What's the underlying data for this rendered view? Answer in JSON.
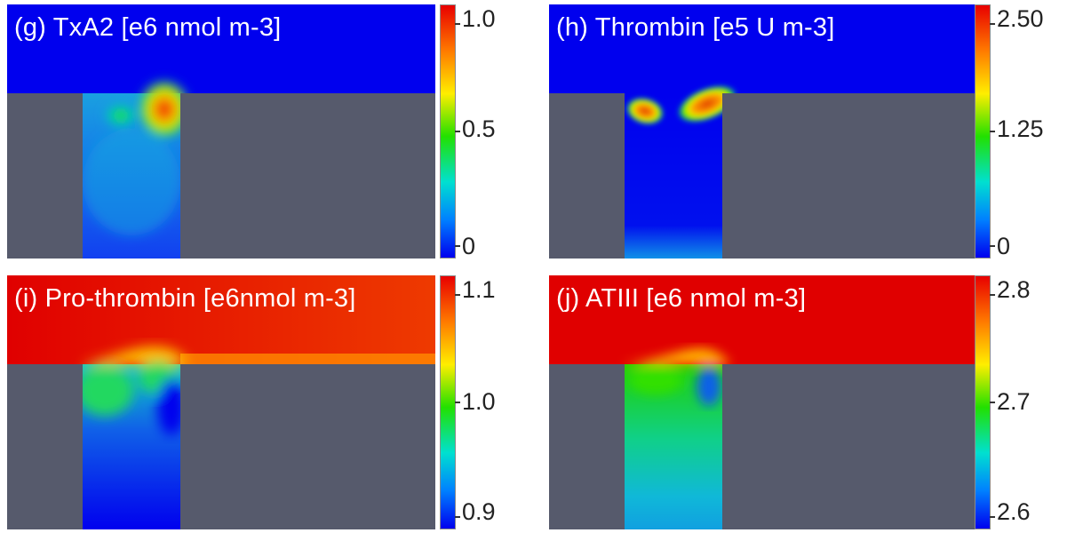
{
  "panels": [
    {
      "id": "g",
      "title": "(g) TxA2 [e6 nmol m-3]",
      "top_label": "1.0",
      "mid_label": "0.5",
      "bottom_label": "0"
    },
    {
      "id": "h",
      "title": "(h) Thrombin [e5 U m-3]",
      "top_label": "2.50",
      "mid_label": "1.25",
      "bottom_label": "0"
    },
    {
      "id": "i",
      "title": "(i) Pro-thrombin [e6nmol m-3]",
      "top_label": "1.1",
      "mid_label": "1.0",
      "bottom_label": "0.9"
    },
    {
      "id": "j",
      "title": "(j) ATIII [e6 nmol m-3]",
      "top_label": "2.8",
      "mid_label": "2.7",
      "bottom_label": "2.6"
    }
  ],
  "colors": {
    "wall": "#565a6c",
    "blue": "#0000ee",
    "red": "#e00000"
  }
}
